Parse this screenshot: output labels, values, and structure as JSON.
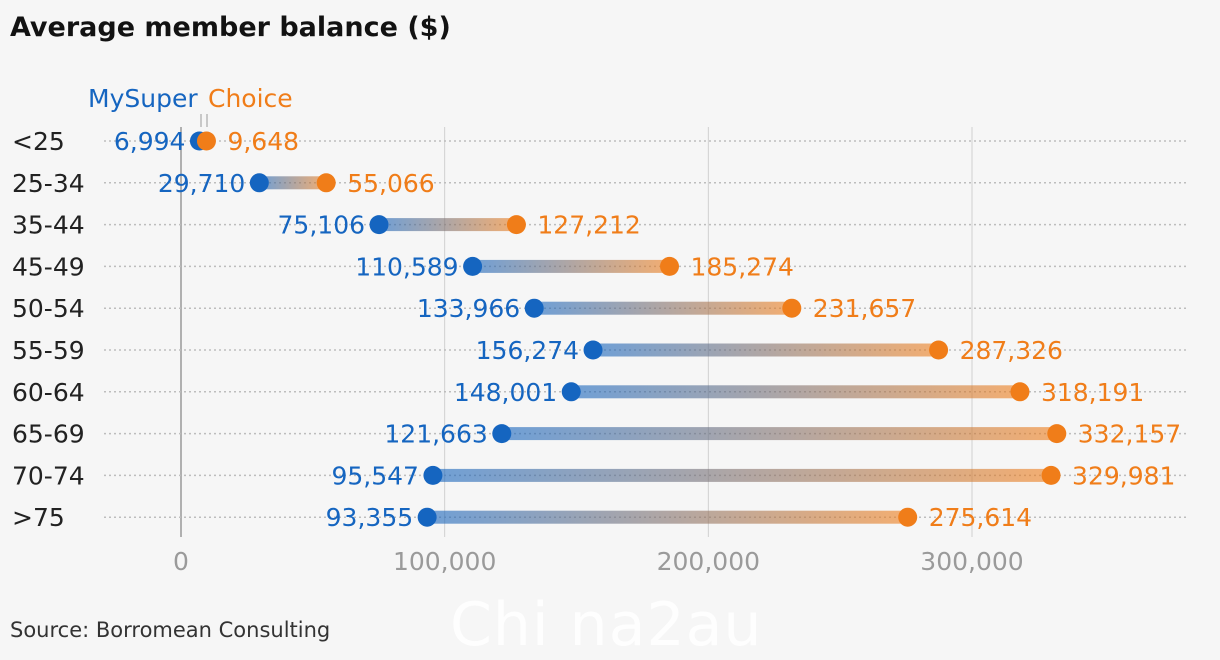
{
  "title": "Average member balance ($)",
  "source": "Source: Borromean Consulting",
  "watermark": "Chi na2au",
  "legend": {
    "mysuper": "MySuper",
    "choice": "Choice"
  },
  "colors": {
    "mysuper": "#1565c0",
    "choice": "#f07d19",
    "grid": "#d0d0d0",
    "axis": "#999999"
  },
  "chart_data": {
    "type": "dumbbell",
    "title": "Average member balance ($)",
    "categories": [
      "<25",
      "25-34",
      "35-44",
      "45-49",
      "50-54",
      "55-59",
      "60-64",
      "65-69",
      "70-74",
      ">75"
    ],
    "series": [
      {
        "name": "MySuper",
        "values": [
          6994,
          29710,
          75106,
          110589,
          133966,
          156274,
          148001,
          121663,
          95547,
          93355
        ]
      },
      {
        "name": "Choice",
        "values": [
          9648,
          55066,
          127212,
          185274,
          231657,
          287326,
          318191,
          332157,
          329981,
          275614
        ]
      }
    ],
    "value_labels": {
      "MySuper": [
        "6,994",
        "29,710",
        "75,106",
        "110,589",
        "133,966",
        "156,274",
        "148,001",
        "121,663",
        "95,547",
        "93,355"
      ],
      "Choice": [
        "9,648",
        "55,066",
        "127,212",
        "185,274",
        "231,657",
        "287,326",
        "318,191",
        "332,157",
        "329,981",
        "275,614"
      ]
    },
    "x_ticks": [
      0,
      100000,
      200000,
      300000
    ],
    "x_tick_labels": [
      "0",
      "100,000",
      "200,000",
      "300,000"
    ],
    "xlim": [
      0,
      380000
    ],
    "grid": true,
    "legend_position": "top-left"
  }
}
